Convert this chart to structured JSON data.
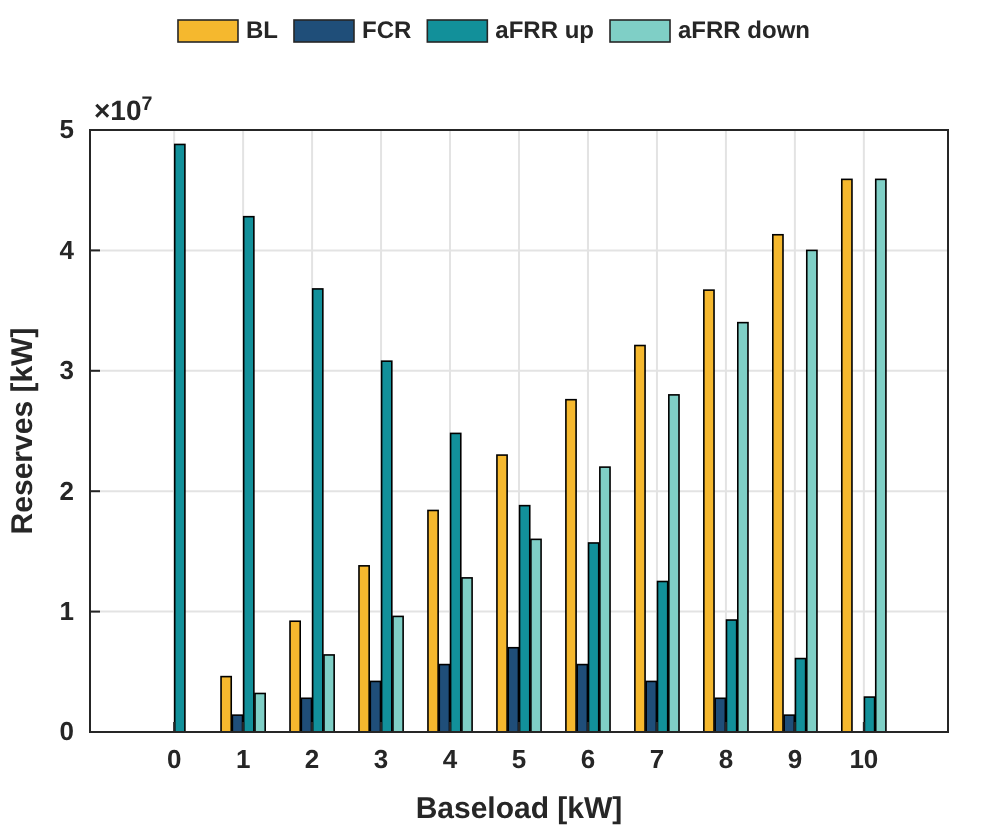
{
  "chart_data": {
    "type": "bar",
    "xlabel": "Baseload [kW]",
    "ylabel": "Reserves [kW]",
    "categories": [
      "0",
      "1",
      "2",
      "3",
      "4",
      "5",
      "6",
      "7",
      "8",
      "9",
      "10"
    ],
    "series": [
      {
        "name": "BL",
        "color": "#f5b82e",
        "values": [
          0,
          0.46,
          0.92,
          1.38,
          1.84,
          2.3,
          2.76,
          3.21,
          3.67,
          4.13,
          4.59
        ]
      },
      {
        "name": "FCR",
        "color": "#1f4e79",
        "values": [
          0,
          0.14,
          0.28,
          0.42,
          0.56,
          0.7,
          0.56,
          0.42,
          0.28,
          0.14,
          0
        ]
      },
      {
        "name": "aFRR up",
        "color": "#12909a",
        "values": [
          4.88,
          4.28,
          3.68,
          3.08,
          2.48,
          1.88,
          1.57,
          1.25,
          0.93,
          0.61,
          0.29
        ]
      },
      {
        "name": "aFRR down",
        "color": "#7fcfc6",
        "values": [
          0,
          0.32,
          0.64,
          0.96,
          1.28,
          1.6,
          2.2,
          2.8,
          3.4,
          4.0,
          4.59
        ]
      }
    ],
    "ylim": [
      0,
      5
    ],
    "yticks": [
      0,
      1,
      2,
      3,
      4,
      5
    ],
    "annotations": [
      "×10$^{7}$"
    ],
    "grid": true,
    "legend": "top"
  }
}
